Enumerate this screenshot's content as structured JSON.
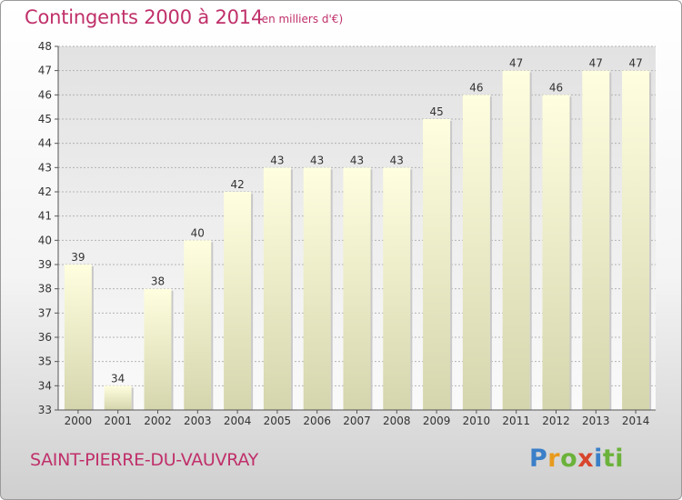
{
  "title": "Contingents 2000 à 2014",
  "subtitle": "(en milliers d'€)",
  "commune": "SAINT-PIERRE-DU-VAUVRAY",
  "logo": {
    "letters": [
      "P",
      "r",
      "o",
      "x",
      "i",
      "t",
      "i"
    ],
    "colors": [
      "#3a7fc8",
      "#e89a1e",
      "#6bb23a",
      "#d8452c",
      "#3a7fc8",
      "#6bb23a",
      "#6bb23a"
    ]
  },
  "colors": {
    "text": "#c0306a",
    "bar_top": "#ffffe0",
    "bar_bottom": "#d5d5ad",
    "plot_top": "#e2e2e2",
    "plot_bottom": "#fafafa",
    "grid": "#b4b4b4"
  },
  "chart_data": {
    "type": "bar",
    "title": "Contingents 2000 à 2014",
    "subtitle": "(en milliers d'€)",
    "categories": [
      "2000",
      "2001",
      "2002",
      "2003",
      "2004",
      "2005",
      "2006",
      "2007",
      "2008",
      "2009",
      "2010",
      "2011",
      "2012",
      "2013",
      "2014"
    ],
    "values": [
      39,
      34,
      38,
      40,
      42,
      43,
      43,
      43,
      43,
      45,
      46,
      47,
      46,
      47,
      47
    ],
    "ylim": [
      33,
      48
    ],
    "yticks": [
      33,
      34,
      35,
      36,
      37,
      38,
      39,
      40,
      41,
      42,
      43,
      44,
      45,
      46,
      47,
      48
    ],
    "grid": true,
    "data_labels": true
  }
}
